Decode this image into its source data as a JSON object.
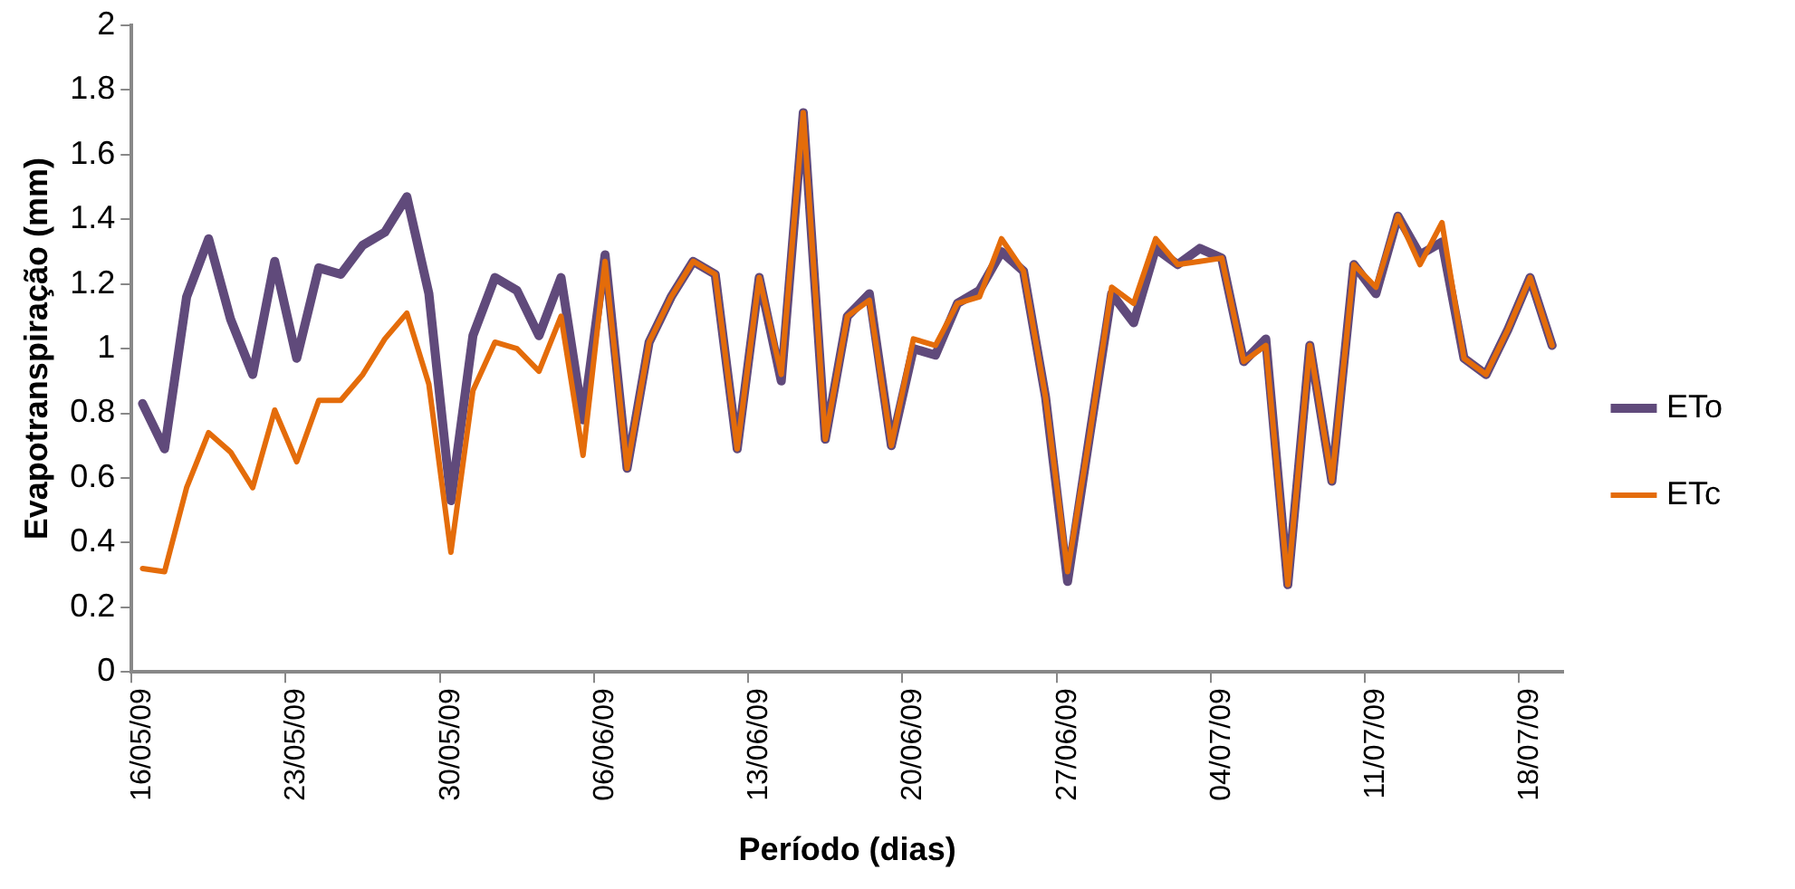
{
  "chart_data": {
    "type": "line",
    "xlabel": "Período (dias)",
    "ylabel": "Evapotranspiração (mm)",
    "categories": [
      "16/05/09",
      null,
      null,
      null,
      null,
      null,
      null,
      "23/05/09",
      null,
      null,
      null,
      null,
      null,
      null,
      "30/05/09",
      null,
      null,
      null,
      null,
      null,
      null,
      "06/06/09",
      null,
      null,
      null,
      null,
      null,
      null,
      "13/06/09",
      null,
      null,
      null,
      null,
      null,
      null,
      "20/06/09",
      null,
      null,
      null,
      null,
      null,
      null,
      "27/06/09",
      null,
      null,
      null,
      null,
      null,
      null,
      "04/07/09",
      null,
      null,
      null,
      null,
      null,
      null,
      "11/07/09",
      null,
      null,
      null,
      null,
      null,
      null,
      "18/07/09",
      null
    ],
    "series": [
      {
        "name": "ETo",
        "color": "#604a7b",
        "values": [
          0.83,
          0.69,
          1.16,
          1.34,
          1.09,
          0.92,
          1.27,
          0.97,
          1.25,
          1.23,
          1.32,
          1.36,
          1.47,
          1.17,
          0.53,
          1.04,
          1.22,
          1.18,
          1.04,
          1.22,
          0.78,
          1.29,
          0.63,
          1.02,
          1.16,
          1.27,
          1.23,
          0.69,
          1.22,
          0.9,
          1.73,
          0.72,
          1.1,
          1.17,
          0.7,
          1.0,
          0.98,
          1.14,
          1.18,
          1.3,
          1.24,
          0.85,
          0.28,
          0.73,
          1.17,
          1.08,
          1.31,
          1.26,
          1.31,
          1.28,
          0.96,
          1.03,
          0.27,
          1.01,
          0.59,
          1.26,
          1.17,
          1.41,
          1.29,
          1.33,
          0.97,
          0.92,
          1.06,
          1.22,
          1.01
        ]
      },
      {
        "name": "ETc",
        "color": "#e46c0a",
        "values": [
          0.32,
          0.31,
          0.57,
          0.74,
          0.68,
          0.57,
          0.81,
          0.65,
          0.84,
          0.84,
          0.92,
          1.03,
          1.11,
          0.89,
          0.37,
          0.87,
          1.02,
          1.0,
          0.93,
          1.1,
          0.67,
          1.27,
          0.63,
          1.02,
          1.16,
          1.27,
          1.23,
          0.69,
          1.22,
          0.92,
          1.73,
          0.72,
          1.1,
          1.15,
          0.7,
          1.03,
          1.01,
          1.14,
          1.16,
          1.34,
          1.24,
          0.85,
          0.31,
          0.73,
          1.19,
          1.14,
          1.34,
          1.26,
          1.27,
          1.28,
          0.96,
          1.01,
          0.27,
          1.01,
          0.59,
          1.26,
          1.19,
          1.41,
          1.26,
          1.39,
          0.97,
          0.92,
          1.06,
          1.22,
          1.01
        ]
      }
    ],
    "ylim": [
      0,
      2
    ],
    "yticks": [
      0,
      0.2,
      0.4,
      0.6,
      0.8,
      1,
      1.2,
      1.4,
      1.6,
      1.8,
      2
    ],
    "grid": false,
    "legend": "right",
    "marker": "none",
    "line_style": "solid"
  }
}
